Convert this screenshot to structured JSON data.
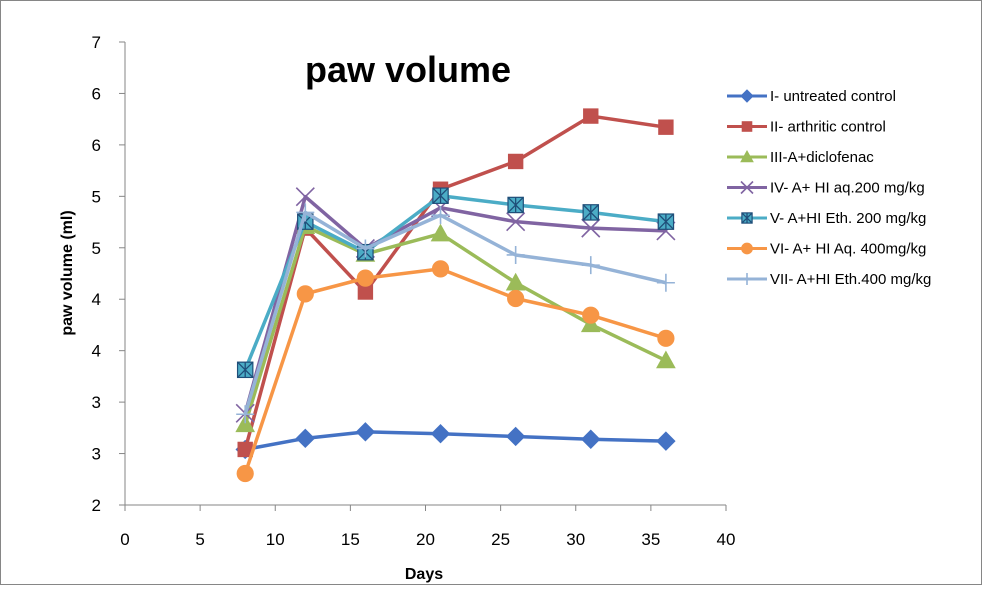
{
  "chart_data": {
    "type": "line",
    "title": "paw volume",
    "xlabel": "Days",
    "ylabel": "paw volume (ml)",
    "xlim": [
      0,
      40
    ],
    "ylim_plot": [
      2,
      7
    ],
    "x_ticks": [
      0,
      5,
      10,
      15,
      20,
      25,
      30,
      35,
      40
    ],
    "y_tick_labels": [
      "2",
      "3",
      "3",
      "4",
      "4",
      "5",
      "5",
      "6",
      "6",
      "7"
    ],
    "grid": false,
    "legend_position": "right",
    "series": [
      {
        "name": "I- untreated control",
        "color": "#4472C4",
        "marker": "diamond",
        "x": [
          8,
          12,
          16,
          21,
          26,
          31,
          36
        ],
        "y": [
          2.6,
          2.72,
          2.79,
          2.77,
          2.74,
          2.71,
          2.69
        ]
      },
      {
        "name": "II- arthritic control",
        "color": "#C0504D",
        "marker": "square",
        "x": [
          8,
          12,
          16,
          21,
          26,
          31,
          36
        ],
        "y": [
          2.6,
          4.99,
          4.3,
          5.41,
          5.71,
          6.2,
          6.08
        ]
      },
      {
        "name": "III-A+diclofenac",
        "color": "#9BBB59",
        "marker": "triangle",
        "x": [
          8,
          12,
          16,
          21,
          26,
          31,
          36
        ],
        "y": [
          2.87,
          5.01,
          4.71,
          4.93,
          4.4,
          3.95,
          3.56
        ]
      },
      {
        "name": "IV- A+ HI aq.200 mg/kg",
        "color": "#8064A2",
        "marker": "x",
        "x": [
          8,
          12,
          16,
          21,
          26,
          31,
          36
        ],
        "y": [
          2.99,
          5.33,
          4.77,
          5.21,
          5.06,
          4.99,
          4.96
        ]
      },
      {
        "name": "V- A+HI Eth. 200 mg/kg",
        "color": "#4BACC6",
        "marker": "boxed-star",
        "x": [
          8,
          12,
          16,
          21,
          26,
          31,
          36
        ],
        "y": [
          3.46,
          5.06,
          4.73,
          5.34,
          5.24,
          5.16,
          5.06
        ]
      },
      {
        "name": "VI- A+ HI Aq. 400mg/kg",
        "color": "#F79646",
        "marker": "circle",
        "x": [
          8,
          12,
          16,
          21,
          26,
          31,
          36
        ],
        "y": [
          2.34,
          4.28,
          4.45,
          4.55,
          4.23,
          4.05,
          3.8
        ]
      },
      {
        "name": "VII- A+HI Eth.400 mg/kg",
        "color": "#95B3D7",
        "marker": "plus",
        "x": [
          8,
          12,
          16,
          21,
          26,
          31,
          36
        ],
        "y": [
          2.98,
          5.16,
          4.77,
          5.13,
          4.7,
          4.59,
          4.4
        ]
      }
    ]
  }
}
